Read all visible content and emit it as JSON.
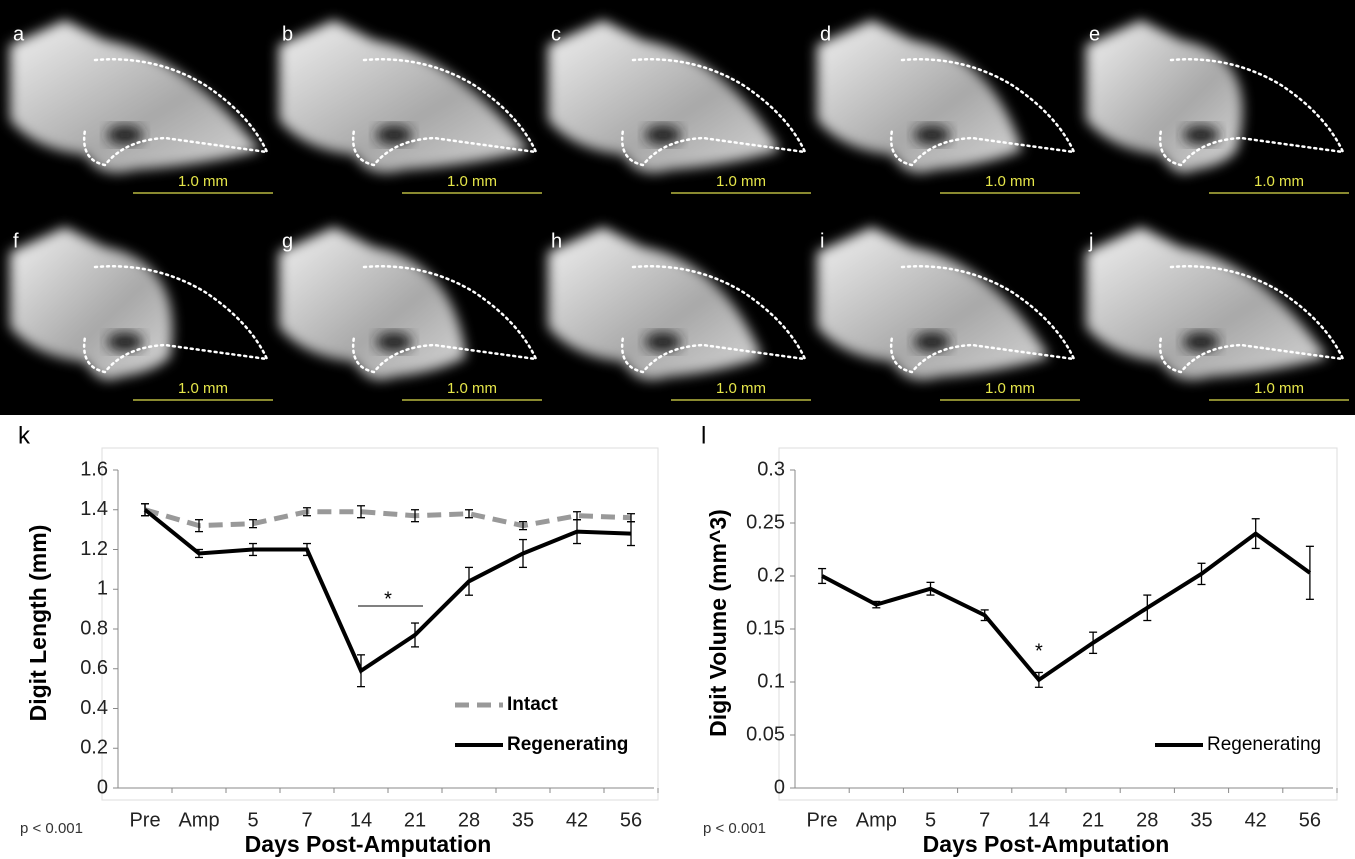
{
  "panels": [
    {
      "label": "a",
      "scale": "1.0 mm"
    },
    {
      "label": "b",
      "scale": "1.0 mm"
    },
    {
      "label": "c",
      "scale": "1.0 mm"
    },
    {
      "label": "d",
      "scale": "1.0 mm"
    },
    {
      "label": "e",
      "scale": "1.0 mm"
    },
    {
      "label": "f",
      "scale": "1.0 mm"
    },
    {
      "label": "g",
      "scale": "1.0 mm"
    },
    {
      "label": "h",
      "scale": "1.0 mm"
    },
    {
      "label": "i",
      "scale": "1.0 mm"
    },
    {
      "label": "j",
      "scale": "1.0 mm"
    }
  ],
  "chart_data": [
    {
      "type": "line",
      "panel_label": "k",
      "note": "p < 0.001",
      "annotation": "*",
      "y_label": "Digit Length (mm)",
      "x_label": "Days Post-Amputation",
      "categories": [
        "Pre",
        "Amp",
        "5",
        "7",
        "14",
        "21",
        "28",
        "35",
        "42",
        "56"
      ],
      "ylim": [
        0,
        1.6
      ],
      "yticks": [
        0,
        0.2,
        0.4,
        0.6,
        0.8,
        1,
        1.2,
        1.4,
        1.6
      ],
      "legend": "lower right",
      "series": [
        {
          "name": "Intact",
          "color": "#999999",
          "style": "dashed",
          "values": [
            1.4,
            1.32,
            1.33,
            1.39,
            1.39,
            1.37,
            1.38,
            1.32,
            1.37,
            1.36
          ],
          "errors": [
            0.03,
            0.03,
            0.02,
            0.02,
            0.03,
            0.03,
            0.02,
            0.02,
            0.02,
            0.02
          ]
        },
        {
          "name": "Regenerating",
          "color": "#000000",
          "style": "solid",
          "values": [
            1.4,
            1.18,
            1.2,
            1.2,
            0.59,
            0.77,
            1.04,
            1.18,
            1.29,
            1.28
          ],
          "errors": [
            0.03,
            0.02,
            0.03,
            0.03,
            0.08,
            0.06,
            0.07,
            0.07,
            0.06,
            0.06
          ]
        }
      ]
    },
    {
      "type": "line",
      "panel_label": "l",
      "note": "p < 0.001",
      "annotation": "*",
      "y_label": "Digit Volume (mm^3)",
      "x_label": "Days Post-Amputation",
      "categories": [
        "Pre",
        "Amp",
        "5",
        "7",
        "14",
        "21",
        "28",
        "35",
        "42",
        "56"
      ],
      "ylim": [
        0,
        0.3
      ],
      "yticks": [
        0,
        0.05,
        0.1,
        0.15,
        0.2,
        0.25,
        0.3
      ],
      "legend": "lower right",
      "series": [
        {
          "name": "Regenerating",
          "color": "#000000",
          "style": "solid",
          "values": [
            0.2,
            0.173,
            0.188,
            0.163,
            0.102,
            0.137,
            0.17,
            0.202,
            0.24,
            0.203
          ],
          "errors": [
            0.007,
            0.003,
            0.006,
            0.005,
            0.007,
            0.01,
            0.012,
            0.01,
            0.014,
            0.025
          ]
        }
      ]
    }
  ]
}
